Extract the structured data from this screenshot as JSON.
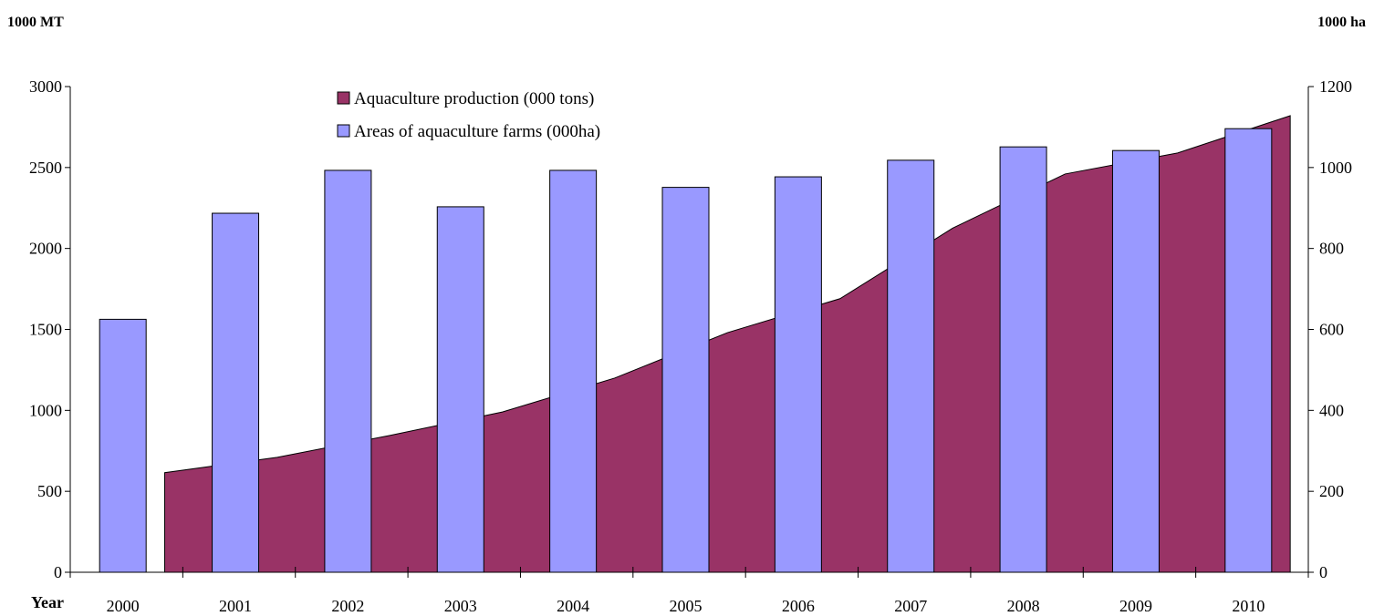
{
  "chart_data": {
    "type": "bar",
    "categories": [
      "2000",
      "2001",
      "2002",
      "2003",
      "2004",
      "2005",
      "2006",
      "2007",
      "2008",
      "2009",
      "2010"
    ],
    "xlabel": "Year",
    "y_left": {
      "label": "1000 MT",
      "lim": [
        0,
        3000
      ],
      "ticks": [
        0,
        500,
        1000,
        1500,
        2000,
        2500,
        3000
      ]
    },
    "y_right": {
      "label": "1000 ha",
      "lim": [
        0,
        1200
      ],
      "ticks": [
        0,
        200,
        400,
        600,
        800,
        1000,
        1200
      ]
    },
    "series": [
      {
        "name": "Aquaculture production (000 tons)",
        "type": "area",
        "axis": "left",
        "color": "#993366",
        "values": [
          615,
          710,
          845,
          990,
          1200,
          1480,
          1690,
          2125,
          2460,
          2590,
          2820
        ]
      },
      {
        "name": "Areas of aquaculture farms (000ha)",
        "type": "bar",
        "axis": "right",
        "color": "#9999ff",
        "values": [
          625,
          887,
          993,
          903,
          993,
          951,
          977,
          1018,
          1051,
          1042,
          1096
        ]
      }
    ],
    "legend": "top-center",
    "grid": false
  }
}
